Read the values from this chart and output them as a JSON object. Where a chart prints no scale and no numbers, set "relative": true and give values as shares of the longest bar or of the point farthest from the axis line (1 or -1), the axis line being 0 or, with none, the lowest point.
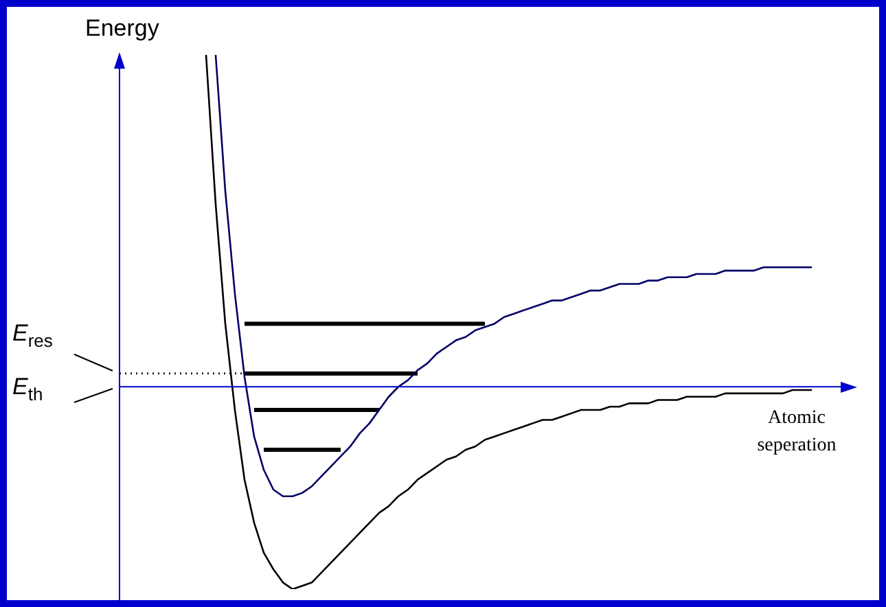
{
  "chart_data": {
    "type": "line",
    "ylabel": "Energy",
    "xlabel": "Atomic seperation",
    "relative": true,
    "tick_labels": false,
    "line_style": "solid",
    "categories": [
      null,
      null,
      null,
      null,
      null,
      null,
      null,
      null,
      null,
      null,
      null,
      null,
      null,
      null,
      null,
      null,
      null,
      null,
      null,
      null,
      null,
      null,
      null,
      null,
      null,
      null,
      null,
      null,
      null,
      null,
      null,
      null,
      null,
      null,
      null,
      null,
      null,
      null,
      null,
      null,
      null,
      null,
      null,
      null,
      null,
      null,
      null,
      null,
      null,
      null,
      null,
      null,
      null,
      null,
      null,
      null,
      null,
      null,
      null,
      null,
      null,
      null,
      null,
      null,
      null,
      null,
      null,
      null,
      null,
      null,
      null,
      null,
      null,
      null,
      null,
      null
    ],
    "series": [
      {
        "color": "#000066",
        "values": [
          null,
          null,
          null,
          null,
          null,
          null,
          null,
          null,
          null,
          null,
          1.0,
          0.59,
          0.28,
          0.03,
          -0.15,
          -0.25,
          -0.31,
          -0.33,
          -0.33,
          -0.32,
          -0.3,
          -0.27,
          -0.24,
          -0.21,
          -0.18,
          -0.14,
          -0.11,
          -0.07,
          -0.03,
          0.0,
          0.02,
          0.05,
          0.07,
          0.1,
          0.12,
          0.14,
          0.15,
          0.17,
          0.18,
          0.19,
          0.21,
          0.22,
          0.23,
          0.24,
          0.25,
          0.26,
          0.26,
          0.27,
          0.28,
          0.29,
          0.29,
          0.3,
          0.31,
          0.31,
          0.31,
          0.32,
          0.32,
          0.33,
          0.33,
          0.33,
          0.34,
          0.34,
          0.34,
          0.35,
          0.35,
          0.35,
          0.35,
          0.36,
          0.36,
          0.36,
          0.36,
          0.36,
          0.36,
          null,
          null,
          null
        ]
      },
      {
        "color": "#000000",
        "values": [
          null,
          null,
          null,
          null,
          null,
          null,
          null,
          null,
          null,
          1.0,
          0.55,
          0.19,
          -0.07,
          -0.28,
          -0.41,
          -0.5,
          -0.55,
          -0.59,
          -0.61,
          -0.6,
          -0.59,
          -0.56,
          -0.53,
          -0.5,
          -0.47,
          -0.44,
          -0.41,
          -0.38,
          -0.36,
          -0.33,
          -0.31,
          -0.28,
          -0.26,
          -0.24,
          -0.22,
          -0.21,
          -0.19,
          -0.18,
          -0.16,
          -0.15,
          -0.14,
          -0.13,
          -0.12,
          -0.11,
          -0.1,
          -0.1,
          -0.09,
          -0.08,
          -0.07,
          -0.07,
          -0.07,
          -0.06,
          -0.06,
          -0.05,
          -0.05,
          -0.05,
          -0.04,
          -0.04,
          -0.04,
          -0.03,
          -0.03,
          -0.03,
          -0.03,
          -0.02,
          -0.02,
          -0.02,
          -0.02,
          -0.02,
          -0.02,
          -0.02,
          -0.01,
          -0.01,
          -0.01,
          null,
          null,
          null
        ]
      },
      {
        "color": "#000000",
        "values": [
          null,
          null,
          null,
          null,
          null,
          null,
          null,
          null,
          null,
          null,
          null,
          null,
          null,
          0.19,
          0.19,
          0.19,
          0.19,
          0.19,
          0.19,
          0.19,
          0.19,
          0.19,
          0.19,
          0.19,
          0.19,
          0.19,
          0.19,
          0.19,
          0.19,
          0.19,
          0.19,
          0.19,
          0.19,
          0.19,
          0.19,
          0.19,
          0.19,
          0.19,
          0.19,
          null,
          null,
          null,
          null,
          null,
          null,
          null,
          null,
          null,
          null,
          null,
          null,
          null,
          null,
          null,
          null,
          null,
          null,
          null,
          null,
          null,
          null,
          null,
          null,
          null,
          null,
          null,
          null,
          null,
          null,
          null,
          null,
          null,
          null,
          null,
          null,
          null
        ]
      },
      {
        "color": "#000000",
        "values": [
          null,
          null,
          null,
          null,
          null,
          null,
          null,
          null,
          null,
          null,
          null,
          null,
          null,
          0.04,
          0.04,
          0.04,
          0.04,
          0.04,
          0.04,
          0.04,
          0.04,
          0.04,
          0.04,
          0.04,
          0.04,
          0.04,
          0.04,
          0.04,
          0.04,
          0.04,
          0.04,
          0.04,
          null,
          null,
          null,
          null,
          null,
          null,
          null,
          null,
          null,
          null,
          null,
          null,
          null,
          null,
          null,
          null,
          null,
          null,
          null,
          null,
          null,
          null,
          null,
          null,
          null,
          null,
          null,
          null,
          null,
          null,
          null,
          null,
          null,
          null,
          null,
          null,
          null,
          null,
          null,
          null,
          null,
          null,
          null,
          null
        ]
      },
      {
        "color": "#000000",
        "line_style": "dotted",
        "values": [
          0.04,
          0.04,
          0.04,
          0.04,
          0.04,
          0.04,
          0.04,
          0.04,
          0.04,
          0.04,
          0.04,
          0.04,
          0.04,
          0.04,
          null,
          null,
          null,
          null,
          null,
          null,
          null,
          null,
          null,
          null,
          null,
          null,
          null,
          null,
          null,
          null,
          null,
          null,
          null,
          null,
          null,
          null,
          null,
          null,
          null,
          null,
          null,
          null,
          null,
          null,
          null,
          null,
          null,
          null,
          null,
          null,
          null,
          null,
          null,
          null,
          null,
          null,
          null,
          null,
          null,
          null,
          null,
          null,
          null,
          null,
          null,
          null,
          null,
          null,
          null,
          null,
          null,
          null,
          null,
          null,
          null,
          null
        ]
      },
      {
        "color": "#000000",
        "values": [
          null,
          null,
          null,
          null,
          null,
          null,
          null,
          null,
          null,
          null,
          null,
          null,
          null,
          null,
          -0.07,
          -0.07,
          -0.07,
          -0.07,
          -0.07,
          -0.07,
          -0.07,
          -0.07,
          -0.07,
          -0.07,
          -0.07,
          -0.07,
          -0.07,
          -0.07,
          null,
          null,
          null,
          null,
          null,
          null,
          null,
          null,
          null,
          null,
          null,
          null,
          null,
          null,
          null,
          null,
          null,
          null,
          null,
          null,
          null,
          null,
          null,
          null,
          null,
          null,
          null,
          null,
          null,
          null,
          null,
          null,
          null,
          null,
          null,
          null,
          null,
          null,
          null,
          null,
          null,
          null,
          null,
          null,
          null,
          null,
          null,
          null
        ]
      },
      {
        "color": "#000000",
        "values": [
          null,
          null,
          null,
          null,
          null,
          null,
          null,
          null,
          null,
          null,
          null,
          null,
          null,
          null,
          null,
          -0.19,
          -0.19,
          -0.19,
          -0.19,
          -0.19,
          -0.19,
          -0.19,
          -0.19,
          -0.19,
          null,
          null,
          null,
          null,
          null,
          null,
          null,
          null,
          null,
          null,
          null,
          null,
          null,
          null,
          null,
          null,
          null,
          null,
          null,
          null,
          null,
          null,
          null,
          null,
          null,
          null,
          null,
          null,
          null,
          null,
          null,
          null,
          null,
          null,
          null,
          null,
          null,
          null,
          null,
          null,
          null,
          null,
          null,
          null,
          null,
          null,
          null,
          null,
          null,
          null,
          null,
          null
        ]
      }
    ],
    "ref_lines": [
      {
        "axis": "y",
        "value": 0,
        "color": "#0000cc"
      }
    ],
    "annotations": [
      "E$_{res}$",
      "E$_{th}$"
    ]
  }
}
